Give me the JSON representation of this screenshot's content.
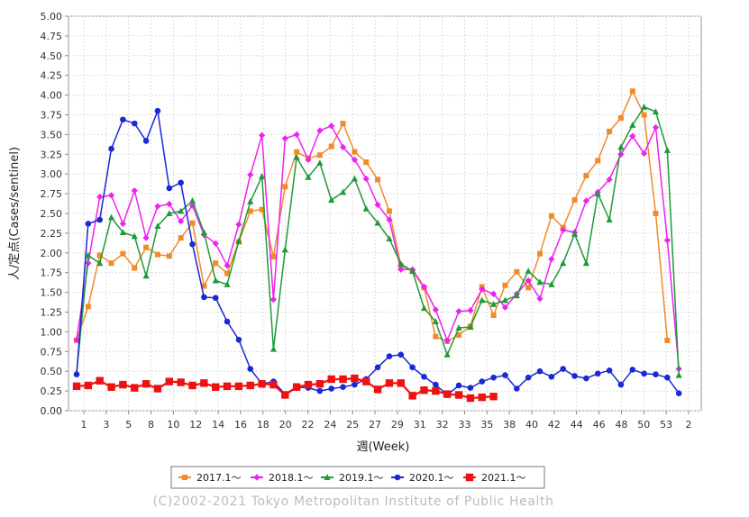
{
  "chart_data": {
    "type": "line",
    "xlabel": "週(Week)",
    "ylabel": "人/定点(Cases/sentinel)",
    "ylim": [
      0,
      5
    ],
    "y_tick_step": 0.25,
    "y_ticks": [
      "0.00",
      "0.25",
      "0.50",
      "0.75",
      "1.00",
      "1.25",
      "1.50",
      "1.75",
      "2.00",
      "2.25",
      "2.50",
      "2.75",
      "3.00",
      "3.25",
      "3.50",
      "3.75",
      "4.00",
      "4.25",
      "4.50",
      "4.75",
      "5.00"
    ],
    "x_tick_labels": [
      "1",
      "3",
      "5",
      "8",
      "10",
      "12",
      "14",
      "16",
      "18",
      "20",
      "22",
      "24",
      "25",
      "27",
      "29",
      "31",
      "32",
      "33",
      "35",
      "38",
      "40",
      "42",
      "44",
      "46",
      "48",
      "50",
      "53",
      "2"
    ],
    "grid": true,
    "legend_position": "bottom",
    "series": [
      {
        "name": "2017.1～",
        "color": "#f28a2a",
        "marker": "square",
        "values": [
          0.89,
          1.32,
          1.97,
          1.87,
          1.99,
          1.81,
          2.07,
          1.98,
          1.96,
          2.19,
          2.38,
          1.58,
          1.87,
          1.74,
          2.14,
          2.53,
          2.55,
          1.95,
          2.84,
          3.28,
          3.2,
          3.24,
          3.35,
          3.64,
          3.28,
          3.15,
          2.93,
          2.53,
          1.84,
          1.77,
          1.56,
          0.94,
          0.88,
          0.96,
          1.07,
          1.57,
          1.21,
          1.59,
          1.76,
          1.56,
          1.99,
          2.47,
          2.32,
          2.67,
          2.98,
          3.17,
          3.54,
          3.71,
          4.05,
          3.75,
          2.5,
          0.89
        ]
      },
      {
        "name": "2018.1～",
        "color": "#ee22ee",
        "marker": "diamond",
        "values": [
          0.9,
          1.87,
          2.71,
          2.73,
          2.37,
          2.79,
          2.19,
          2.59,
          2.62,
          2.4,
          2.6,
          2.23,
          2.12,
          1.84,
          2.36,
          2.99,
          3.49,
          1.41,
          3.45,
          3.5,
          3.18,
          3.55,
          3.61,
          3.34,
          3.18,
          2.94,
          2.61,
          2.42,
          1.79,
          1.79,
          1.57,
          1.28,
          0.89,
          1.26,
          1.27,
          1.54,
          1.48,
          1.31,
          1.48,
          1.65,
          1.42,
          1.92,
          2.29,
          2.26,
          2.66,
          2.77,
          2.93,
          3.25,
          3.48,
          3.26,
          3.59,
          2.16,
          0.53
        ]
      },
      {
        "name": "2019.1～",
        "color": "#1e9a3a",
        "marker": "triangle",
        "values": [
          0.48,
          1.97,
          1.87,
          2.45,
          2.26,
          2.21,
          1.71,
          2.34,
          2.5,
          2.53,
          2.66,
          2.26,
          1.65,
          1.6,
          2.15,
          2.65,
          2.97,
          0.78,
          2.04,
          3.21,
          2.96,
          3.14,
          2.67,
          2.77,
          2.94,
          2.56,
          2.38,
          2.18,
          1.86,
          1.77,
          1.3,
          1.13,
          0.71,
          1.05,
          1.06,
          1.4,
          1.35,
          1.4,
          1.46,
          1.77,
          1.63,
          1.6,
          1.87,
          2.24,
          1.87,
          2.75,
          2.42,
          3.34,
          3.62,
          3.85,
          3.79,
          3.3,
          0.45
        ]
      },
      {
        "name": "2020.1～",
        "color": "#1a28d6",
        "marker": "circle",
        "values": [
          0.46,
          2.37,
          2.42,
          3.32,
          3.69,
          3.64,
          3.42,
          3.8,
          2.82,
          2.89,
          2.11,
          1.44,
          1.43,
          1.13,
          0.9,
          0.53,
          0.34,
          0.37,
          0.21,
          0.3,
          0.29,
          0.25,
          0.28,
          0.3,
          0.33,
          0.4,
          0.55,
          0.69,
          0.71,
          0.55,
          0.43,
          0.33,
          0.2,
          0.32,
          0.29,
          0.37,
          0.42,
          0.45,
          0.28,
          0.42,
          0.5,
          0.43,
          0.53,
          0.44,
          0.41,
          0.47,
          0.51,
          0.33,
          0.52,
          0.47,
          0.46,
          0.42,
          0.22
        ]
      },
      {
        "name": "2021.1～",
        "color": "#ee1111",
        "marker": "square",
        "values": [
          0.31,
          0.32,
          0.38,
          0.3,
          0.33,
          0.29,
          0.34,
          0.28,
          0.37,
          0.36,
          0.32,
          0.35,
          0.3,
          0.31,
          0.31,
          0.32,
          0.34,
          0.33,
          0.2,
          0.3,
          0.33,
          0.34,
          0.4,
          0.4,
          0.41,
          0.37,
          0.27,
          0.35,
          0.35,
          0.19,
          0.26,
          0.25,
          0.21,
          0.2,
          0.16,
          0.17,
          0.18
        ]
      }
    ]
  },
  "copyright": "(C)2002-2021 Tokyo Metropolitan Institute of Public Health"
}
